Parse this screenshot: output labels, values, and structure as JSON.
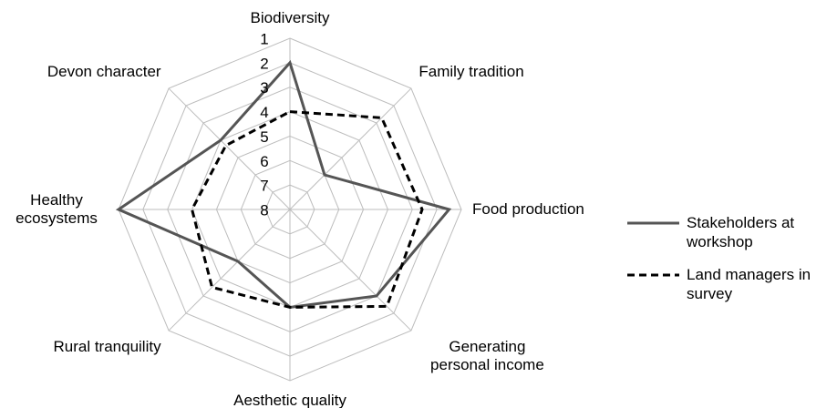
{
  "chart_data": {
    "type": "radar",
    "categories": [
      "Biodiversity",
      "Family tradition",
      "Food production",
      "Generating personal income",
      "Aesthetic quality",
      "Rural tranquility",
      "Healthy ecosystems",
      "Devon character"
    ],
    "rlim": [
      8,
      1
    ],
    "rticks": [
      1,
      2,
      3,
      4,
      5,
      6,
      7,
      8
    ],
    "grid": true,
    "legend": "right",
    "series": [
      {
        "name": "Stakeholders at workshop",
        "color": "#555555",
        "dash": false,
        "values": [
          2,
          6,
          1.5,
          3,
          4,
          5,
          1,
          4
        ]
      },
      {
        "name": "Land managers in survey",
        "color": "#000000",
        "dash": true,
        "values": [
          4,
          2.7,
          2.6,
          2.4,
          4,
          3.5,
          4,
          4.3
        ]
      }
    ]
  }
}
